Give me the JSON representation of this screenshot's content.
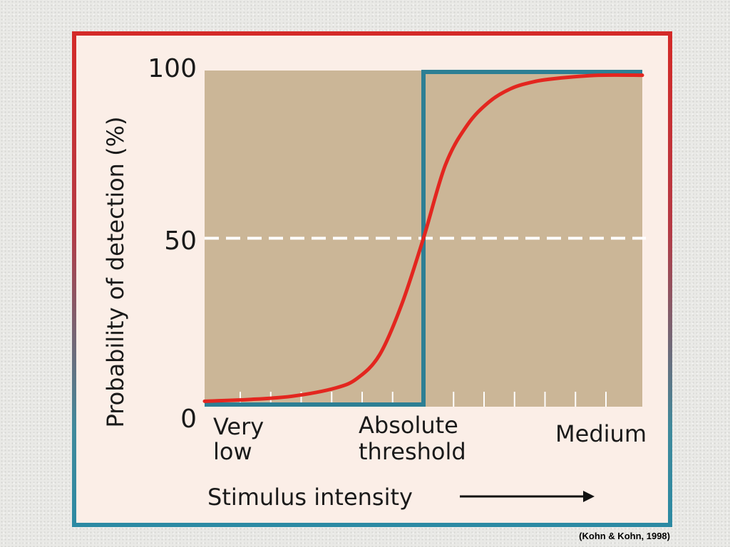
{
  "citation": "(Kohn & Kohn, 1998)",
  "colors": {
    "frame_top": "#d42a28",
    "frame_bottom": "#2b8aa3",
    "panel_bg": "#fbeee7",
    "plot_bg": "#cbb697",
    "probability_curve": "#e3261f",
    "ideal_threshold_line": "#2d7f94",
    "midline": "#ffffff"
  },
  "chart_data": {
    "type": "line",
    "title": "",
    "ylabel": "Probability of detection (%)",
    "xlabel": "Stimulus intensity",
    "ylim": [
      0,
      100
    ],
    "y_ticks": [
      "0",
      "50",
      "100"
    ],
    "x_category_labels": [
      {
        "text": [
          "Very",
          "low"
        ],
        "at": "left"
      },
      {
        "text": [
          "Absolute",
          "threshold"
        ],
        "at": "center"
      },
      {
        "text": [
          "Medium"
        ],
        "at": "right"
      }
    ],
    "x_range": [
      0,
      1
    ],
    "threshold_x": 0.5,
    "reference_line": {
      "y": 50,
      "style": "dashed"
    },
    "series": [
      {
        "kind": "sigmoid",
        "x": [
          0.0,
          0.1,
          0.2,
          0.3,
          0.35,
          0.4,
          0.45,
          0.5,
          0.55,
          0.6,
          0.65,
          0.7,
          0.75,
          0.8,
          0.9,
          1.0
        ],
        "y": [
          1,
          1.5,
          2.5,
          5,
          8,
          15,
          30,
          50,
          72,
          84,
          91,
          95,
          97,
          98,
          99,
          99
        ]
      },
      {
        "kind": "step",
        "x": [
          0.0,
          0.5,
          0.5,
          1.0
        ],
        "y": [
          0,
          0,
          100,
          100
        ]
      }
    ],
    "minor_tick_count": 13,
    "grid": false,
    "legend": "none"
  }
}
